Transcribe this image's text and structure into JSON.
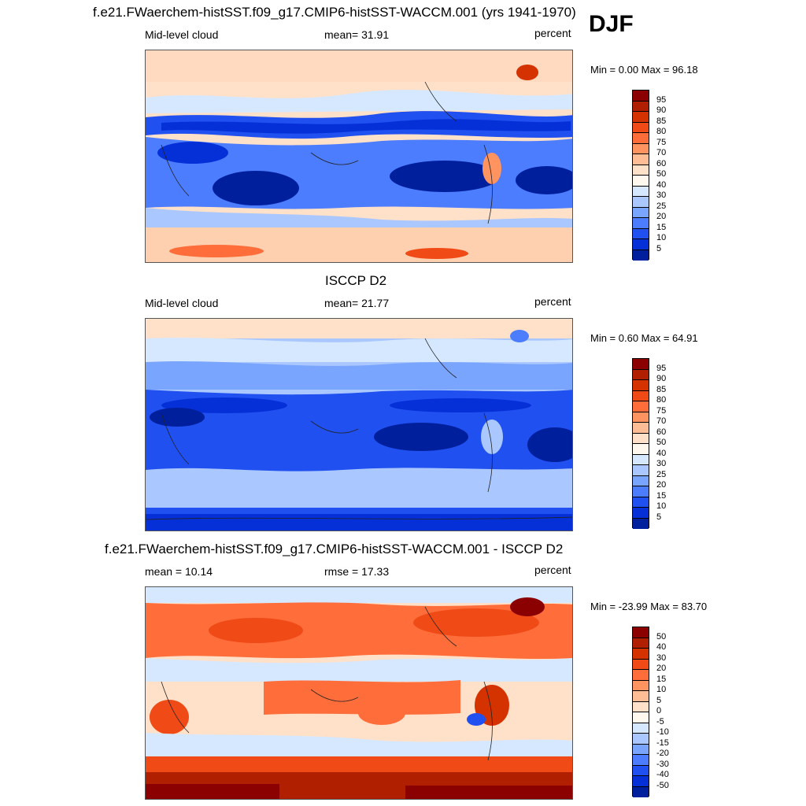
{
  "season": "DJF",
  "panels": [
    {
      "title": "f.e21.FWaerchem-histSST.f09_g17.CMIP6-histSST-WACCM.001 (yrs 1941-1970)",
      "left_label": "Mid-level cloud",
      "center_label": "mean=  31.91",
      "right_label": "percent",
      "minmax": "Min =   0.00 Max =  96.18",
      "colorbar": {
        "labels": [
          "95",
          "90",
          "85",
          "80",
          "75",
          "70",
          "60",
          "50",
          "40",
          "30",
          "25",
          "20",
          "15",
          "10",
          "5"
        ],
        "colors": [
          "#8b0000",
          "#b02000",
          "#d43300",
          "#f04a16",
          "#ff6d3b",
          "#ff9460",
          "#ffbd96",
          "#ffe0c8",
          "#fff8ee",
          "#d6e8ff",
          "#aac8ff",
          "#7aa5ff",
          "#4d7dff",
          "#2050f0",
          "#0530d8",
          "#001f9c"
        ]
      }
    },
    {
      "title": "ISCCP D2",
      "left_label": "Mid-level cloud",
      "center_label": "mean=  21.77",
      "right_label": "percent",
      "minmax": "Min =   0.60 Max =  64.91",
      "colorbar": {
        "labels": [
          "95",
          "90",
          "85",
          "80",
          "75",
          "70",
          "60",
          "50",
          "40",
          "30",
          "25",
          "20",
          "15",
          "10",
          "5"
        ],
        "colors": [
          "#8b0000",
          "#b02000",
          "#d43300",
          "#f04a16",
          "#ff6d3b",
          "#ff9460",
          "#ffbd96",
          "#ffe0c8",
          "#fff8ee",
          "#d6e8ff",
          "#aac8ff",
          "#7aa5ff",
          "#4d7dff",
          "#2050f0",
          "#0530d8",
          "#001f9c"
        ]
      }
    },
    {
      "title": "f.e21.FWaerchem-histSST.f09_g17.CMIP6-histSST-WACCM.001 - ISCCP D2",
      "left_label": "mean =  10.14",
      "center_label": "rmse =  17.33",
      "right_label": "percent",
      "minmax": "Min = -23.99 Max =  83.70",
      "colorbar": {
        "labels": [
          "50",
          "40",
          "30",
          "20",
          "15",
          "10",
          "5",
          "0",
          "-5",
          "-10",
          "-15",
          "-20",
          "-30",
          "-40",
          "-50"
        ],
        "colors": [
          "#8b0000",
          "#b02000",
          "#d43300",
          "#f04a16",
          "#ff6d3b",
          "#ff9460",
          "#ffbd96",
          "#ffe0c8",
          "#fff8ee",
          "#d6e8ff",
          "#aac8ff",
          "#7aa5ff",
          "#4d7dff",
          "#2050f0",
          "#0530d8",
          "#001f9c"
        ]
      }
    }
  ]
}
